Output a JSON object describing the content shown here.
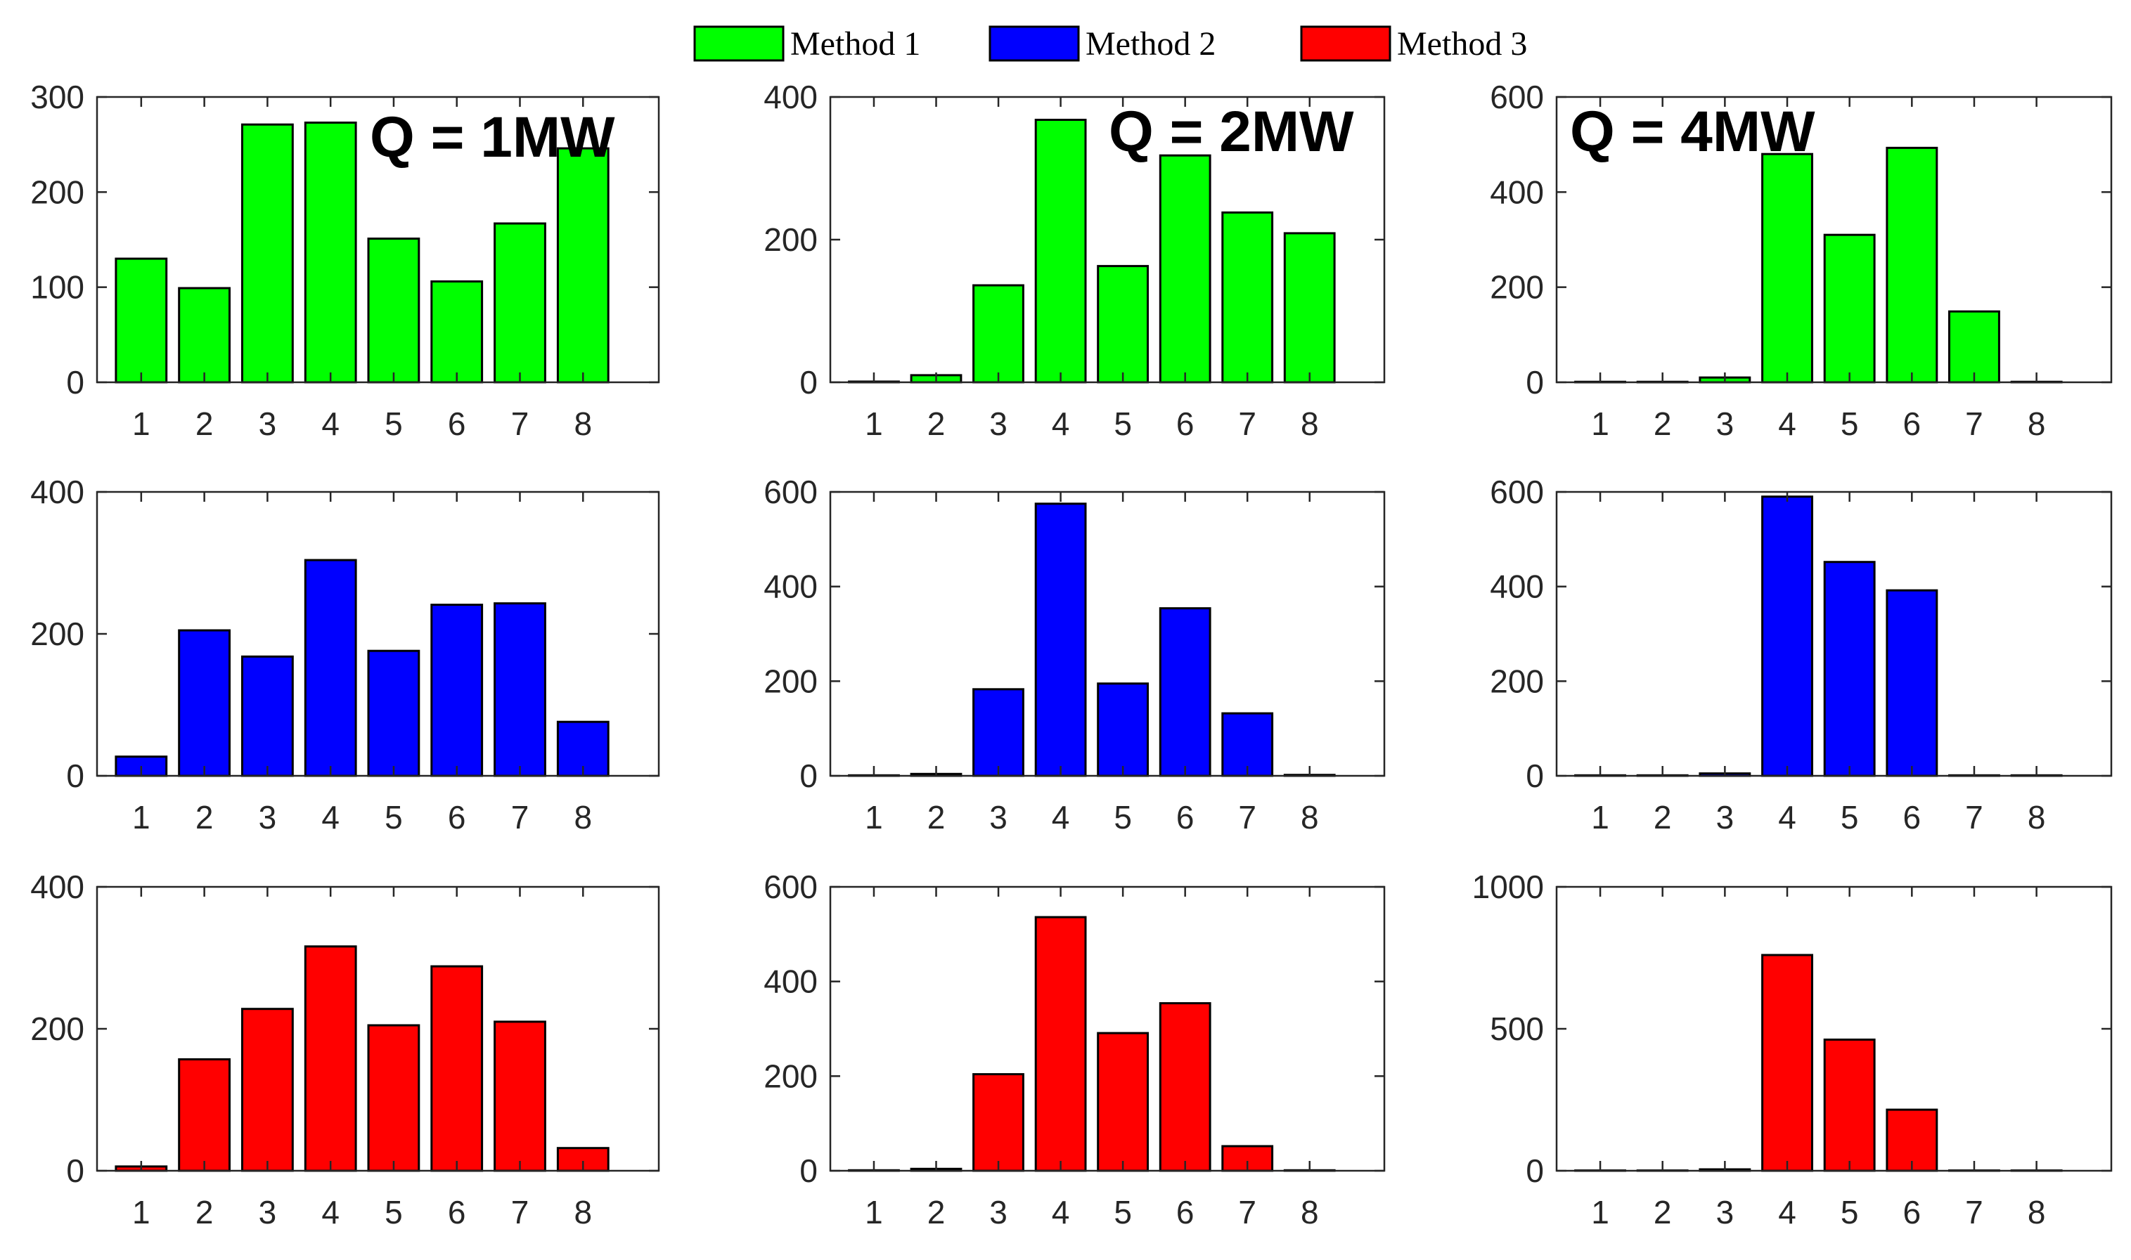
{
  "colors": {
    "method1": "#00FF00",
    "method2": "#0000FF",
    "method3": "#FF0000",
    "axis": "#262626",
    "bar_edge": "#000000"
  },
  "legend": [
    {
      "label": "Method 1",
      "color": "#00FF00"
    },
    {
      "label": "Method 2",
      "color": "#0000FF"
    },
    {
      "label": "Method 3",
      "color": "#FF0000"
    }
  ],
  "chart_data": [
    {
      "type": "bar",
      "row": 0,
      "col": 0,
      "series_name": "Method 1",
      "color": "#00FF00",
      "annotation": "Q = 1MW",
      "categories": [
        "1",
        "2",
        "3",
        "4",
        "5",
        "6",
        "7",
        "8"
      ],
      "values": [
        130,
        99,
        271,
        273,
        151,
        106,
        167,
        246
      ],
      "xlim": [
        0.3,
        9.2
      ],
      "ylim": [
        0,
        300
      ],
      "yticks": [
        0,
        100,
        200,
        300
      ],
      "ytick_labels": [
        "0",
        "100",
        "200",
        "300"
      ]
    },
    {
      "type": "bar",
      "row": 0,
      "col": 1,
      "series_name": "Method 1",
      "color": "#00FF00",
      "annotation": "Q = 2MW",
      "categories": [
        "1",
        "2",
        "3",
        "4",
        "5",
        "6",
        "7",
        "8"
      ],
      "values": [
        1,
        10,
        136,
        368,
        163,
        318,
        238,
        209
      ],
      "xlim": [
        0.3,
        9.2
      ],
      "ylim": [
        0,
        400
      ],
      "yticks": [
        0,
        200,
        400
      ],
      "ytick_labels": [
        "0",
        "200",
        "400"
      ]
    },
    {
      "type": "bar",
      "row": 0,
      "col": 2,
      "series_name": "Method 1",
      "color": "#00FF00",
      "annotation": "Q = 4MW",
      "categories": [
        "1",
        "2",
        "3",
        "4",
        "5",
        "6",
        "7",
        "8"
      ],
      "values": [
        1,
        1,
        10,
        480,
        310,
        493,
        149,
        1
      ],
      "xlim": [
        0.3,
        9.2
      ],
      "ylim": [
        0,
        600
      ],
      "yticks": [
        0,
        200,
        400,
        600
      ],
      "ytick_labels": [
        "0",
        "200",
        "400",
        "600"
      ]
    },
    {
      "type": "bar",
      "row": 1,
      "col": 0,
      "series_name": "Method 2",
      "color": "#0000FF",
      "annotation": "",
      "categories": [
        "1",
        "2",
        "3",
        "4",
        "5",
        "6",
        "7",
        "8"
      ],
      "values": [
        27,
        205,
        168,
        304,
        176,
        241,
        243,
        76
      ],
      "xlim": [
        0.3,
        9.2
      ],
      "ylim": [
        0,
        400
      ],
      "yticks": [
        0,
        200,
        400
      ],
      "ytick_labels": [
        "0",
        "200",
        "400"
      ]
    },
    {
      "type": "bar",
      "row": 1,
      "col": 1,
      "series_name": "Method 2",
      "color": "#0000FF",
      "annotation": "",
      "categories": [
        "1",
        "2",
        "3",
        "4",
        "5",
        "6",
        "7",
        "8"
      ],
      "values": [
        1,
        4,
        183,
        575,
        195,
        354,
        132,
        2
      ],
      "xlim": [
        0.3,
        9.2
      ],
      "ylim": [
        0,
        600
      ],
      "yticks": [
        0,
        200,
        400,
        600
      ],
      "ytick_labels": [
        "0",
        "200",
        "400",
        "600"
      ]
    },
    {
      "type": "bar",
      "row": 1,
      "col": 2,
      "series_name": "Method 2",
      "color": "#0000FF",
      "annotation": "",
      "categories": [
        "1",
        "2",
        "3",
        "4",
        "5",
        "6",
        "7",
        "8"
      ],
      "values": [
        1,
        1,
        5,
        590,
        452,
        392,
        1,
        1
      ],
      "xlim": [
        0.3,
        9.2
      ],
      "ylim": [
        0,
        600
      ],
      "yticks": [
        0,
        200,
        400,
        600
      ],
      "ytick_labels": [
        "0",
        "200",
        "400",
        "600"
      ]
    },
    {
      "type": "bar",
      "row": 2,
      "col": 0,
      "series_name": "Method 3",
      "color": "#FF0000",
      "annotation": "",
      "categories": [
        "1",
        "2",
        "3",
        "4",
        "5",
        "6",
        "7",
        "8"
      ],
      "values": [
        6,
        157,
        228,
        316,
        205,
        288,
        210,
        32
      ],
      "xlim": [
        0.3,
        9.2
      ],
      "ylim": [
        0,
        400
      ],
      "yticks": [
        0,
        200,
        400
      ],
      "ytick_labels": [
        "0",
        "200",
        "400"
      ]
    },
    {
      "type": "bar",
      "row": 2,
      "col": 1,
      "series_name": "Method 3",
      "color": "#FF0000",
      "annotation": "",
      "categories": [
        "1",
        "2",
        "3",
        "4",
        "5",
        "6",
        "7",
        "8"
      ],
      "values": [
        1,
        4,
        204,
        536,
        291,
        354,
        52,
        1
      ],
      "xlim": [
        0.3,
        9.2
      ],
      "ylim": [
        0,
        600
      ],
      "yticks": [
        0,
        200,
        400,
        600
      ],
      "ytick_labels": [
        "0",
        "200",
        "400",
        "600"
      ]
    },
    {
      "type": "bar",
      "row": 2,
      "col": 2,
      "series_name": "Method 3",
      "color": "#FF0000",
      "annotation": "",
      "categories": [
        "1",
        "2",
        "3",
        "4",
        "5",
        "6",
        "7",
        "8"
      ],
      "values": [
        1,
        1,
        5,
        760,
        462,
        215,
        1,
        1
      ],
      "xlim": [
        0.3,
        9.2
      ],
      "ylim": [
        0,
        1000
      ],
      "yticks": [
        0,
        500,
        1000
      ],
      "ytick_labels": [
        "0",
        "500",
        "1000"
      ]
    }
  ]
}
